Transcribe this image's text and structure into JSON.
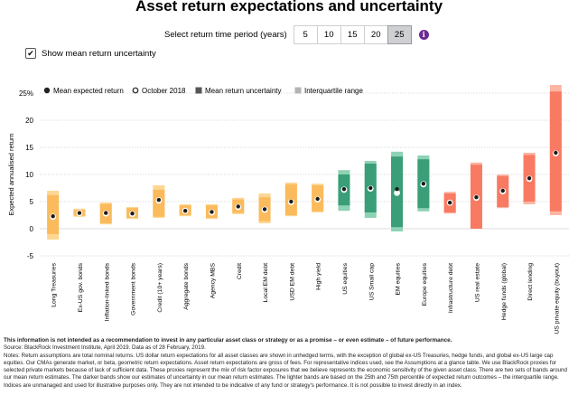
{
  "title": "Asset return expectations and uncertainty",
  "period_selector": {
    "label": "Select return time period (years)",
    "options": [
      "5",
      "10",
      "15",
      "20",
      "25"
    ],
    "selected": "25",
    "info_icon": "info-icon"
  },
  "toggle": {
    "label": "Show mean return uncertainty",
    "checked": true,
    "check_glyph": "✔"
  },
  "legend": {
    "mean": "Mean expected return",
    "october": "October 2018",
    "uncertainty": "Mean return uncertainty",
    "iqr": "Interquartile range"
  },
  "colors": {
    "yellow_light": "#fed693",
    "yellow_dark": "#fbbb5c",
    "green_light": "#8ed2b4",
    "green_dark": "#3a9e78",
    "red_light": "#fbb5a3",
    "red_dark": "#f97a62"
  },
  "chart_data": {
    "type": "bar",
    "ylabel": "Expected annualised return",
    "ylim": [
      -5,
      25
    ],
    "yticks": [
      "25%",
      "20",
      "15",
      "10",
      "5",
      "0",
      "-5"
    ],
    "grid": true,
    "legend_position": "top",
    "categories": [
      {
        "name": "Long Treasuries",
        "group": "yellow",
        "outer": [
          -2,
          7
        ],
        "inner": [
          -1,
          6.2
        ],
        "mean": 2.3,
        "oct": 2.2
      },
      {
        "name": "Ex-US gov. bonds",
        "group": "yellow",
        "outer": [
          2.2,
          3.7
        ],
        "inner": [
          2.4,
          3.5
        ],
        "mean": 2.9,
        "oct": 2.9
      },
      {
        "name": "Inflation-linked bonds",
        "group": "yellow",
        "outer": [
          0.8,
          4.8
        ],
        "inner": [
          1.0,
          4.6
        ],
        "mean": 2.9,
        "oct": 2.8
      },
      {
        "name": "Government bonds",
        "group": "yellow",
        "outer": [
          1.8,
          4.0
        ],
        "inner": [
          2.0,
          3.8
        ],
        "mean": 2.8,
        "oct": 2.7
      },
      {
        "name": "Credit (10+ years)",
        "group": "yellow",
        "outer": [
          2.0,
          8.0
        ],
        "inner": [
          2.2,
          7.2
        ],
        "mean": 5.3,
        "oct": 5.2
      },
      {
        "name": "Aggregate bonds",
        "group": "yellow",
        "outer": [
          2.3,
          4.5
        ],
        "inner": [
          2.5,
          4.3
        ],
        "mean": 3.3,
        "oct": 3.3
      },
      {
        "name": "Agency MBS",
        "group": "yellow",
        "outer": [
          1.8,
          4.5
        ],
        "inner": [
          2.0,
          4.3
        ],
        "mean": 3.1,
        "oct": 3.0
      },
      {
        "name": "Credit",
        "group": "yellow",
        "outer": [
          2.7,
          5.7
        ],
        "inner": [
          2.9,
          5.4
        ],
        "mean": 4.1,
        "oct": 4.0
      },
      {
        "name": "Local EM debt",
        "group": "yellow",
        "outer": [
          1.0,
          6.5
        ],
        "inner": [
          1.4,
          5.8
        ],
        "mean": 3.6,
        "oct": 3.5
      },
      {
        "name": "USD EM debt",
        "group": "yellow",
        "outer": [
          2.3,
          8.5
        ],
        "inner": [
          2.5,
          8.2
        ],
        "mean": 5.0,
        "oct": 4.9
      },
      {
        "name": "High yield",
        "group": "yellow",
        "outer": [
          3.0,
          8.3
        ],
        "inner": [
          3.2,
          8.0
        ],
        "mean": 5.5,
        "oct": 5.4
      },
      {
        "name": "US equities",
        "group": "green",
        "outer": [
          3.3,
          10.8
        ],
        "inner": [
          4.3,
          10.0
        ],
        "mean": 7.3,
        "oct": 7.2
      },
      {
        "name": "US Small cap",
        "group": "green",
        "outer": [
          2.0,
          12.5
        ],
        "inner": [
          3.0,
          12.0
        ],
        "mean": 7.5,
        "oct": 7.4
      },
      {
        "name": "EM equities",
        "group": "green",
        "outer": [
          -0.5,
          14.2
        ],
        "inner": [
          0.3,
          13.3
        ],
        "mean": 7.3,
        "oct": 6.6
      },
      {
        "name": "Europe equities",
        "group": "green",
        "outer": [
          3.2,
          13.5
        ],
        "inner": [
          3.8,
          12.8
        ],
        "mean": 8.3,
        "oct": 8.2
      },
      {
        "name": "Infrastructure debt",
        "group": "red",
        "outer": [
          2.8,
          6.8
        ],
        "inner": [
          3.0,
          6.5
        ],
        "mean": 4.8,
        "oct": 4.8
      },
      {
        "name": "US real estate",
        "group": "red",
        "outer": [
          0,
          12.2
        ],
        "inner": [
          0,
          11.8
        ],
        "mean": 5.8,
        "oct": 5.7
      },
      {
        "name": "Hedge funds (global)",
        "group": "red",
        "outer": [
          3.8,
          10.0
        ],
        "inner": [
          4.0,
          9.7
        ],
        "mean": 7.0,
        "oct": 6.9
      },
      {
        "name": "Direct lending",
        "group": "red",
        "outer": [
          4.5,
          14.0
        ],
        "inner": [
          5.0,
          13.6
        ],
        "mean": 9.3,
        "oct": 9.2
      },
      {
        "name": "US private equity (buyout)",
        "group": "red",
        "outer": [
          2.5,
          26.5
        ],
        "inner": [
          3.2,
          25.3
        ],
        "mean": 14.0,
        "oct": 13.9
      }
    ]
  },
  "notes": {
    "disclaimer": "This information is not intended as a recommendation to invest in any particular asset class or strategy or as a promise – or even estimate – of future performance.",
    "source": "Source: BlackRock Investment Institute, April 2019. Data as of 28 February, 2019.",
    "body": "Notes: Return assumptions are total nominal returns. US dollar return expectations for all asset classes are shown in unhedged terms, with the exception of global ex-US Treasuries, hedge funds, and global ex-US large cap equities. Our CMAs generate market, or beta, geometric return expectations. Asset return expectations are gross of fees. For representative indices used, see the Assumptions at a glance table. We use BlackRock proxies for selected private markets because of lack of sufficient data. These proxies represent the mix of risk factor exposures that we believe represents the economic sensitivity of the given asset class. There are two sets of bands around our mean return estimates. The darker bands show our estimates of uncertainty in our mean return estimates. The lighter bands are based on the 25th and 75th percentile of expected return outcomes – the interquartile range. Indices are unmanaged and used for illustrative purposes only. They are not intended to be indicative of any fund or strategy's performance. It is not possible to invest directly in an index."
  }
}
